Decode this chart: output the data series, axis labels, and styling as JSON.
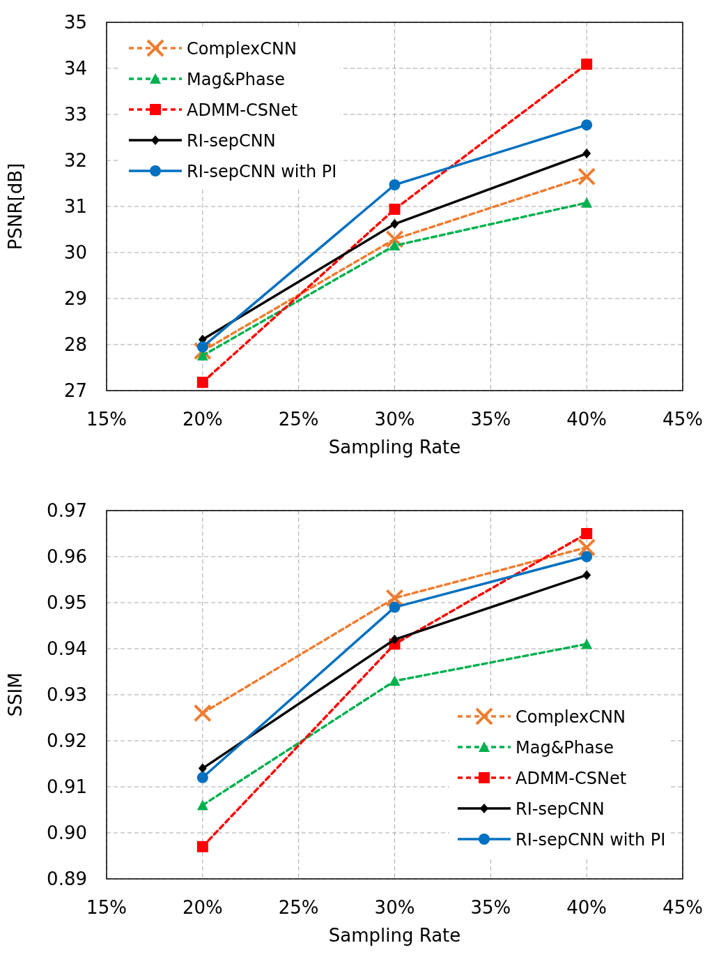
{
  "chart_data": [
    {
      "type": "line",
      "xlabel": "Sampling Rate",
      "ylabel": "PSNR[dB]",
      "x": [
        20,
        30,
        40
      ],
      "xlim": [
        15,
        45
      ],
      "xticks": [
        {
          "value": 15,
          "label": "15%"
        },
        {
          "value": 20,
          "label": "20%"
        },
        {
          "value": 25,
          "label": "25%"
        },
        {
          "value": 30,
          "label": "30%"
        },
        {
          "value": 35,
          "label": "35%"
        },
        {
          "value": 40,
          "label": "40%"
        },
        {
          "value": 45,
          "label": "45%"
        }
      ],
      "ylim": [
        27,
        35
      ],
      "yticks": [
        27,
        28,
        29,
        30,
        31,
        32,
        33,
        34,
        35
      ],
      "grid": true,
      "legend": "top left",
      "series": [
        {
          "name": "ComplexCNN",
          "color": "#ed7d31",
          "marker": "cross",
          "line_style": "dashed",
          "values": [
            27.86,
            30.29,
            31.65
          ]
        },
        {
          "name": "Mag&Phase",
          "color": "#00b050",
          "marker": "triangle",
          "line_style": "dashed",
          "values": [
            27.76,
            30.15,
            31.08
          ]
        },
        {
          "name": "ADMM-CSNet",
          "color": "#ff0000",
          "marker": "square",
          "line_style": "dashed",
          "values": [
            27.18,
            30.94,
            34.09
          ]
        },
        {
          "name": "RI-sepCNN",
          "color": "#000000",
          "marker": "diamond",
          "line_style": "solid",
          "values": [
            28.11,
            30.62,
            32.15
          ]
        },
        {
          "name": "RI-sepCNN with PI",
          "color": "#0070c0",
          "marker": "circle",
          "line_style": "solid",
          "values": [
            27.95,
            31.47,
            32.77
          ]
        }
      ]
    },
    {
      "type": "line",
      "xlabel": "Sampling Rate",
      "ylabel": "SSIM",
      "x": [
        20,
        30,
        40
      ],
      "xlim": [
        15,
        45
      ],
      "xticks": [
        {
          "value": 15,
          "label": "15%"
        },
        {
          "value": 20,
          "label": "20%"
        },
        {
          "value": 25,
          "label": "25%"
        },
        {
          "value": 30,
          "label": "30%"
        },
        {
          "value": 35,
          "label": "35%"
        },
        {
          "value": 40,
          "label": "40%"
        },
        {
          "value": 45,
          "label": "45%"
        }
      ],
      "ylim": [
        0.89,
        0.97
      ],
      "yticks": [
        0.89,
        {
          "value": 0.9,
          "label": "0.90"
        },
        0.91,
        0.92,
        0.93,
        0.94,
        0.95,
        0.96,
        0.97
      ],
      "grid": true,
      "legend": "bottom right",
      "series": [
        {
          "name": "ComplexCNN",
          "color": "#ed7d31",
          "marker": "cross",
          "line_style": "dashed",
          "values": [
            0.926,
            0.951,
            0.962
          ]
        },
        {
          "name": "Mag&Phase",
          "color": "#00b050",
          "marker": "triangle",
          "line_style": "dashed",
          "values": [
            0.906,
            0.933,
            0.941
          ]
        },
        {
          "name": "ADMM-CSNet",
          "color": "#ff0000",
          "marker": "square",
          "line_style": "dashed",
          "values": [
            0.897,
            0.941,
            0.965
          ]
        },
        {
          "name": "RI-sepCNN",
          "color": "#000000",
          "marker": "diamond",
          "line_style": "solid",
          "values": [
            0.914,
            0.942,
            0.956
          ]
        },
        {
          "name": "RI-sepCNN with PI",
          "color": "#0070c0",
          "marker": "circle",
          "line_style": "solid",
          "values": [
            0.912,
            0.949,
            0.96
          ]
        }
      ]
    }
  ]
}
